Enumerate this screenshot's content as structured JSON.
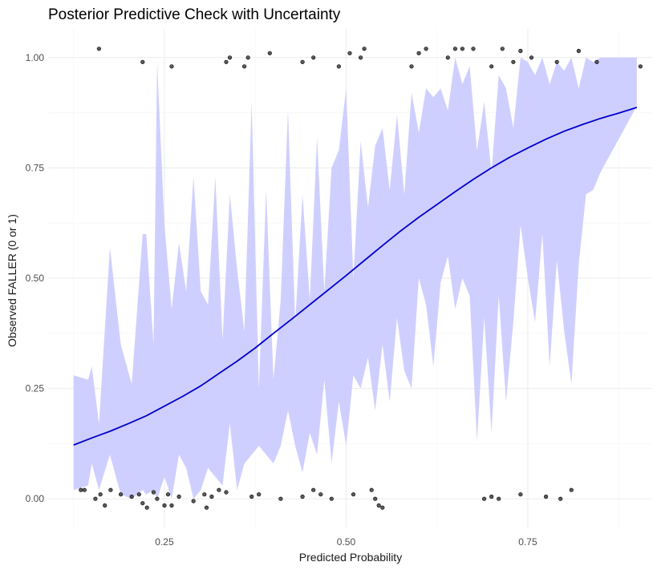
{
  "chart_data": {
    "type": "line",
    "title": "Posterior Predictive Check with Uncertainty",
    "xlabel": "Predicted Probability",
    "ylabel": "Observed FALLER (0 or 1)",
    "xlim": [
      0.09,
      0.92
    ],
    "ylim": [
      -0.065,
      1.065
    ],
    "x_ticks": [
      0.25,
      0.5,
      0.75
    ],
    "x_tick_labels": [
      "0.25",
      "0.50",
      "0.75"
    ],
    "y_ticks": [
      0,
      0.25,
      0.5,
      0.75,
      1
    ],
    "y_tick_labels": [
      "0.00",
      "0.25",
      "0.50",
      "0.75",
      "1.00"
    ],
    "grid": true,
    "colors": {
      "band": "#ccccff",
      "line": "#0000cc",
      "point": "#3d3d3d",
      "grid": "#ebebeb"
    },
    "series": [
      {
        "kind": "line",
        "x": [
          0.125,
          0.15,
          0.175,
          0.2,
          0.225,
          0.25,
          0.275,
          0.3,
          0.325,
          0.35,
          0.375,
          0.4,
          0.425,
          0.45,
          0.475,
          0.5,
          0.525,
          0.55,
          0.575,
          0.6,
          0.625,
          0.65,
          0.675,
          0.7,
          0.725,
          0.75,
          0.775,
          0.8,
          0.825,
          0.85,
          0.875,
          0.9
        ],
        "y": [
          0.122,
          0.138,
          0.153,
          0.17,
          0.188,
          0.21,
          0.232,
          0.256,
          0.284,
          0.312,
          0.342,
          0.375,
          0.407,
          0.44,
          0.473,
          0.506,
          0.54,
          0.574,
          0.607,
          0.638,
          0.667,
          0.696,
          0.724,
          0.75,
          0.774,
          0.795,
          0.815,
          0.833,
          0.848,
          0.862,
          0.874,
          0.887
        ]
      },
      {
        "kind": "band",
        "x": [
          0.125,
          0.145,
          0.15,
          0.16,
          0.175,
          0.19,
          0.205,
          0.22,
          0.225,
          0.235,
          0.24,
          0.25,
          0.26,
          0.27,
          0.28,
          0.29,
          0.3,
          0.31,
          0.32,
          0.33,
          0.34,
          0.35,
          0.36,
          0.37,
          0.38,
          0.39,
          0.4,
          0.41,
          0.42,
          0.43,
          0.44,
          0.45,
          0.46,
          0.47,
          0.48,
          0.49,
          0.5,
          0.51,
          0.52,
          0.53,
          0.54,
          0.55,
          0.56,
          0.57,
          0.58,
          0.59,
          0.6,
          0.61,
          0.62,
          0.63,
          0.64,
          0.65,
          0.66,
          0.67,
          0.68,
          0.69,
          0.7,
          0.71,
          0.72,
          0.73,
          0.74,
          0.75,
          0.76,
          0.77,
          0.78,
          0.79,
          0.8,
          0.81,
          0.82,
          0.83,
          0.84,
          0.85,
          0.86,
          0.87,
          0.88,
          0.89,
          0.9
        ],
        "upper": [
          0.28,
          0.27,
          0.3,
          0.17,
          0.57,
          0.35,
          0.26,
          0.6,
          0.6,
          0.35,
          0.99,
          0.62,
          0.43,
          0.58,
          0.47,
          0.73,
          0.47,
          0.44,
          0.73,
          0.36,
          0.69,
          0.52,
          0.38,
          0.9,
          0.25,
          0.7,
          0.27,
          0.45,
          0.88,
          0.4,
          0.69,
          0.45,
          0.82,
          0.47,
          0.75,
          0.79,
          0.93,
          0.5,
          0.81,
          0.66,
          0.8,
          0.84,
          0.7,
          0.87,
          0.69,
          0.92,
          0.83,
          0.93,
          0.91,
          0.93,
          0.88,
          1.0,
          0.94,
          0.98,
          0.79,
          0.9,
          0.74,
          0.96,
          0.93,
          0.84,
          1.0,
          0.99,
          0.96,
          1.0,
          0.94,
          0.99,
          0.97,
          1.0,
          0.93,
          1.0,
          0.99,
          1.0,
          1.0,
          1.0,
          1.0,
          1.0,
          1.0
        ],
        "lower": [
          0.02,
          0.03,
          0.08,
          0.02,
          0.1,
          0.01,
          0.0,
          0.02,
          0.01,
          0.02,
          0.0,
          0.05,
          0.0,
          0.1,
          0.07,
          0.0,
          0.02,
          0.07,
          0.05,
          0.03,
          0.17,
          0.02,
          0.08,
          0.1,
          0.12,
          0.1,
          0.08,
          0.12,
          0.2,
          0.12,
          0.06,
          0.15,
          0.1,
          0.27,
          0.08,
          0.22,
          0.12,
          0.28,
          0.25,
          0.32,
          0.2,
          0.35,
          0.22,
          0.41,
          0.29,
          0.25,
          0.5,
          0.44,
          0.3,
          0.49,
          0.55,
          0.43,
          0.5,
          0.46,
          0.13,
          0.41,
          0.15,
          0.46,
          0.22,
          0.4,
          0.62,
          0.5,
          0.4,
          0.6,
          0.3,
          0.54,
          0.38,
          0.26,
          0.53,
          0.69,
          0.7,
          0.74,
          0.77,
          0.8,
          0.83,
          0.86,
          0.89
        ]
      },
      {
        "kind": "points",
        "x": [
          0.135,
          0.14,
          0.155,
          0.162,
          0.168,
          0.176,
          0.19,
          0.205,
          0.215,
          0.22,
          0.226,
          0.235,
          0.24,
          0.25,
          0.255,
          0.26,
          0.27,
          0.29,
          0.305,
          0.308,
          0.315,
          0.325,
          0.335,
          0.37,
          0.38,
          0.41,
          0.44,
          0.455,
          0.465,
          0.48,
          0.51,
          0.535,
          0.54,
          0.545,
          0.55,
          0.69,
          0.7,
          0.71,
          0.74,
          0.775,
          0.795,
          0.81,
          0.16,
          0.22,
          0.26,
          0.335,
          0.34,
          0.36,
          0.365,
          0.395,
          0.44,
          0.455,
          0.49,
          0.505,
          0.52,
          0.525,
          0.59,
          0.6,
          0.61,
          0.64,
          0.65,
          0.66,
          0.675,
          0.7,
          0.715,
          0.73,
          0.74,
          0.755,
          0.79,
          0.82,
          0.845,
          0.905
        ],
        "y": [
          0.02,
          0.02,
          0.0,
          0.01,
          -0.015,
          0.02,
          0.01,
          0.005,
          0.01,
          -0.01,
          -0.02,
          0.015,
          0.0,
          -0.015,
          0.01,
          -0.015,
          0.005,
          -0.005,
          0.01,
          -0.02,
          0.005,
          0.02,
          0.015,
          0.005,
          0.01,
          0.0,
          0.005,
          0.02,
          0.01,
          0.0,
          0.01,
          0.02,
          0.0,
          -0.015,
          -0.02,
          0.0,
          0.005,
          0.0,
          0.01,
          0.005,
          0.0,
          0.02,
          1.02,
          0.99,
          0.98,
          0.99,
          1.0,
          0.98,
          1.0,
          1.01,
          0.99,
          1.0,
          0.98,
          1.01,
          1.0,
          1.02,
          0.98,
          1.01,
          1.02,
          1.0,
          1.02,
          1.02,
          1.02,
          0.98,
          1.02,
          0.99,
          1.015,
          1.0,
          0.99,
          1.015,
          0.99,
          0.98
        ]
      }
    ]
  }
}
